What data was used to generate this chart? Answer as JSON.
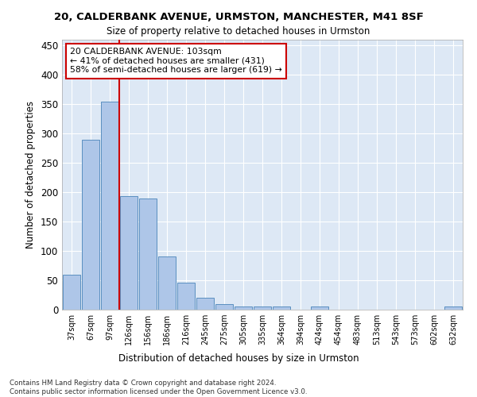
{
  "title1": "20, CALDERBANK AVENUE, URMSTON, MANCHESTER, M41 8SF",
  "title2": "Size of property relative to detached houses in Urmston",
  "xlabel": "Distribution of detached houses by size in Urmston",
  "ylabel": "Number of detached properties",
  "bin_labels": [
    "37sqm",
    "67sqm",
    "97sqm",
    "126sqm",
    "156sqm",
    "186sqm",
    "216sqm",
    "245sqm",
    "275sqm",
    "305sqm",
    "335sqm",
    "364sqm",
    "394sqm",
    "424sqm",
    "454sqm",
    "483sqm",
    "513sqm",
    "543sqm",
    "573sqm",
    "602sqm",
    "632sqm"
  ],
  "bar_values": [
    60,
    290,
    355,
    193,
    190,
    91,
    46,
    20,
    9,
    5,
    5,
    5,
    0,
    5,
    0,
    0,
    0,
    0,
    0,
    0,
    5
  ],
  "bar_color": "#aec6e8",
  "bar_edge_color": "#5a8fc0",
  "vline_color": "#cc0000",
  "annotation_text": "20 CALDERBANK AVENUE: 103sqm\n← 41% of detached houses are smaller (431)\n58% of semi-detached houses are larger (619) →",
  "annotation_box_color": "#ffffff",
  "annotation_box_edge": "#cc0000",
  "background_color": "#dde8f5",
  "grid_color": "#ffffff",
  "footer_text": "Contains HM Land Registry data © Crown copyright and database right 2024.\nContains public sector information licensed under the Open Government Licence v3.0.",
  "ylim": [
    0,
    460
  ],
  "yticks": [
    0,
    50,
    100,
    150,
    200,
    250,
    300,
    350,
    400,
    450
  ]
}
